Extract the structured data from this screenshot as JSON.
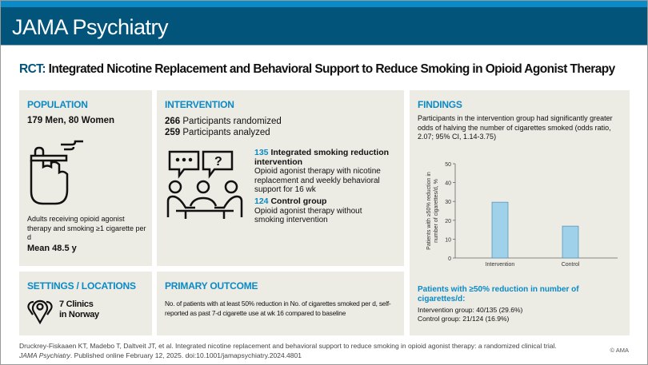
{
  "journal": "JAMA Psychiatry",
  "title": {
    "prefix": "RCT:",
    "text": "Integrated Nicotine Replacement and Behavioral Support to Reduce Smoking in Opioid Agonist Therapy"
  },
  "population": {
    "heading": "POPULATION",
    "counts": "179 Men, 80 Women",
    "icon": "hand-holding-cigarette-icon",
    "description": "Adults receiving opioid agonist therapy and smoking ≥1 cigarette per d",
    "mean_age": "Mean 48.5 y"
  },
  "intervention": {
    "heading": "INTERVENTION",
    "randomized_n": "266",
    "randomized_label": "Participants randomized",
    "analyzed_n": "259",
    "analyzed_label": "Participants analyzed",
    "icon": "group-discussion-icon",
    "groups": [
      {
        "n": "135",
        "name": "Integrated smoking reduction intervention",
        "description": "Opioid agonist therapy with nicotine replacement and weekly behavioral support for 16 wk"
      },
      {
        "n": "124",
        "name": "Control group",
        "description": "Opioid agonist therapy without smoking intervention"
      }
    ]
  },
  "settings": {
    "heading": "SETTINGS / LOCATIONS",
    "icon": "map-pins-icon",
    "line1": "7 Clinics",
    "line2": "in Norway"
  },
  "primary_outcome": {
    "heading": "PRIMARY OUTCOME",
    "text": "No. of patients with at least 50% reduction in No. of cigarettes smoked per d, self-reported as past 7-d cigarette use at wk 16 compared to baseline"
  },
  "findings": {
    "heading": "FINDINGS",
    "text": "Participants in the intervention group had significantly greater odds of halving the number of cigarettes smoked (odds ratio, 2.07; 95% CI, 1.14-3.75)",
    "summary_heading": "Patients with ≥50% reduction in number of cigarettes/d:",
    "intervention_result": "Intervention group: 40/135 (29.6%)",
    "control_result": "Control group: 21/124 (16.9%)"
  },
  "chart_data": {
    "type": "bar",
    "categories": [
      "Intervention",
      "Control"
    ],
    "values": [
      29.6,
      16.9
    ],
    "ylabel": "Patients with ≥50% reduction in number of cigarettes/d, %",
    "ylim": [
      0,
      50
    ],
    "yticks": [
      "0",
      "10",
      "20",
      "30",
      "40",
      "50"
    ],
    "bar_color": "#9fd1ea",
    "grid": false
  },
  "citation": {
    "line1": "Druckrey-Fiskaaen KT, Madebo T, Daltveit JT, et al. Integrated nicotine replacement and behavioral support to reduce smoking in opioid agonist therapy: a randomized clinical trial.",
    "journal": "JAMA Psychiatry",
    "line2": ". Published online February 12, 2025. doi:10.1001/jamapsychiatry.2024.4801"
  },
  "copyright": "© AMA",
  "colors": {
    "header": "#02547a",
    "accent": "#0a8ac6",
    "panel": "#ecebe4"
  }
}
